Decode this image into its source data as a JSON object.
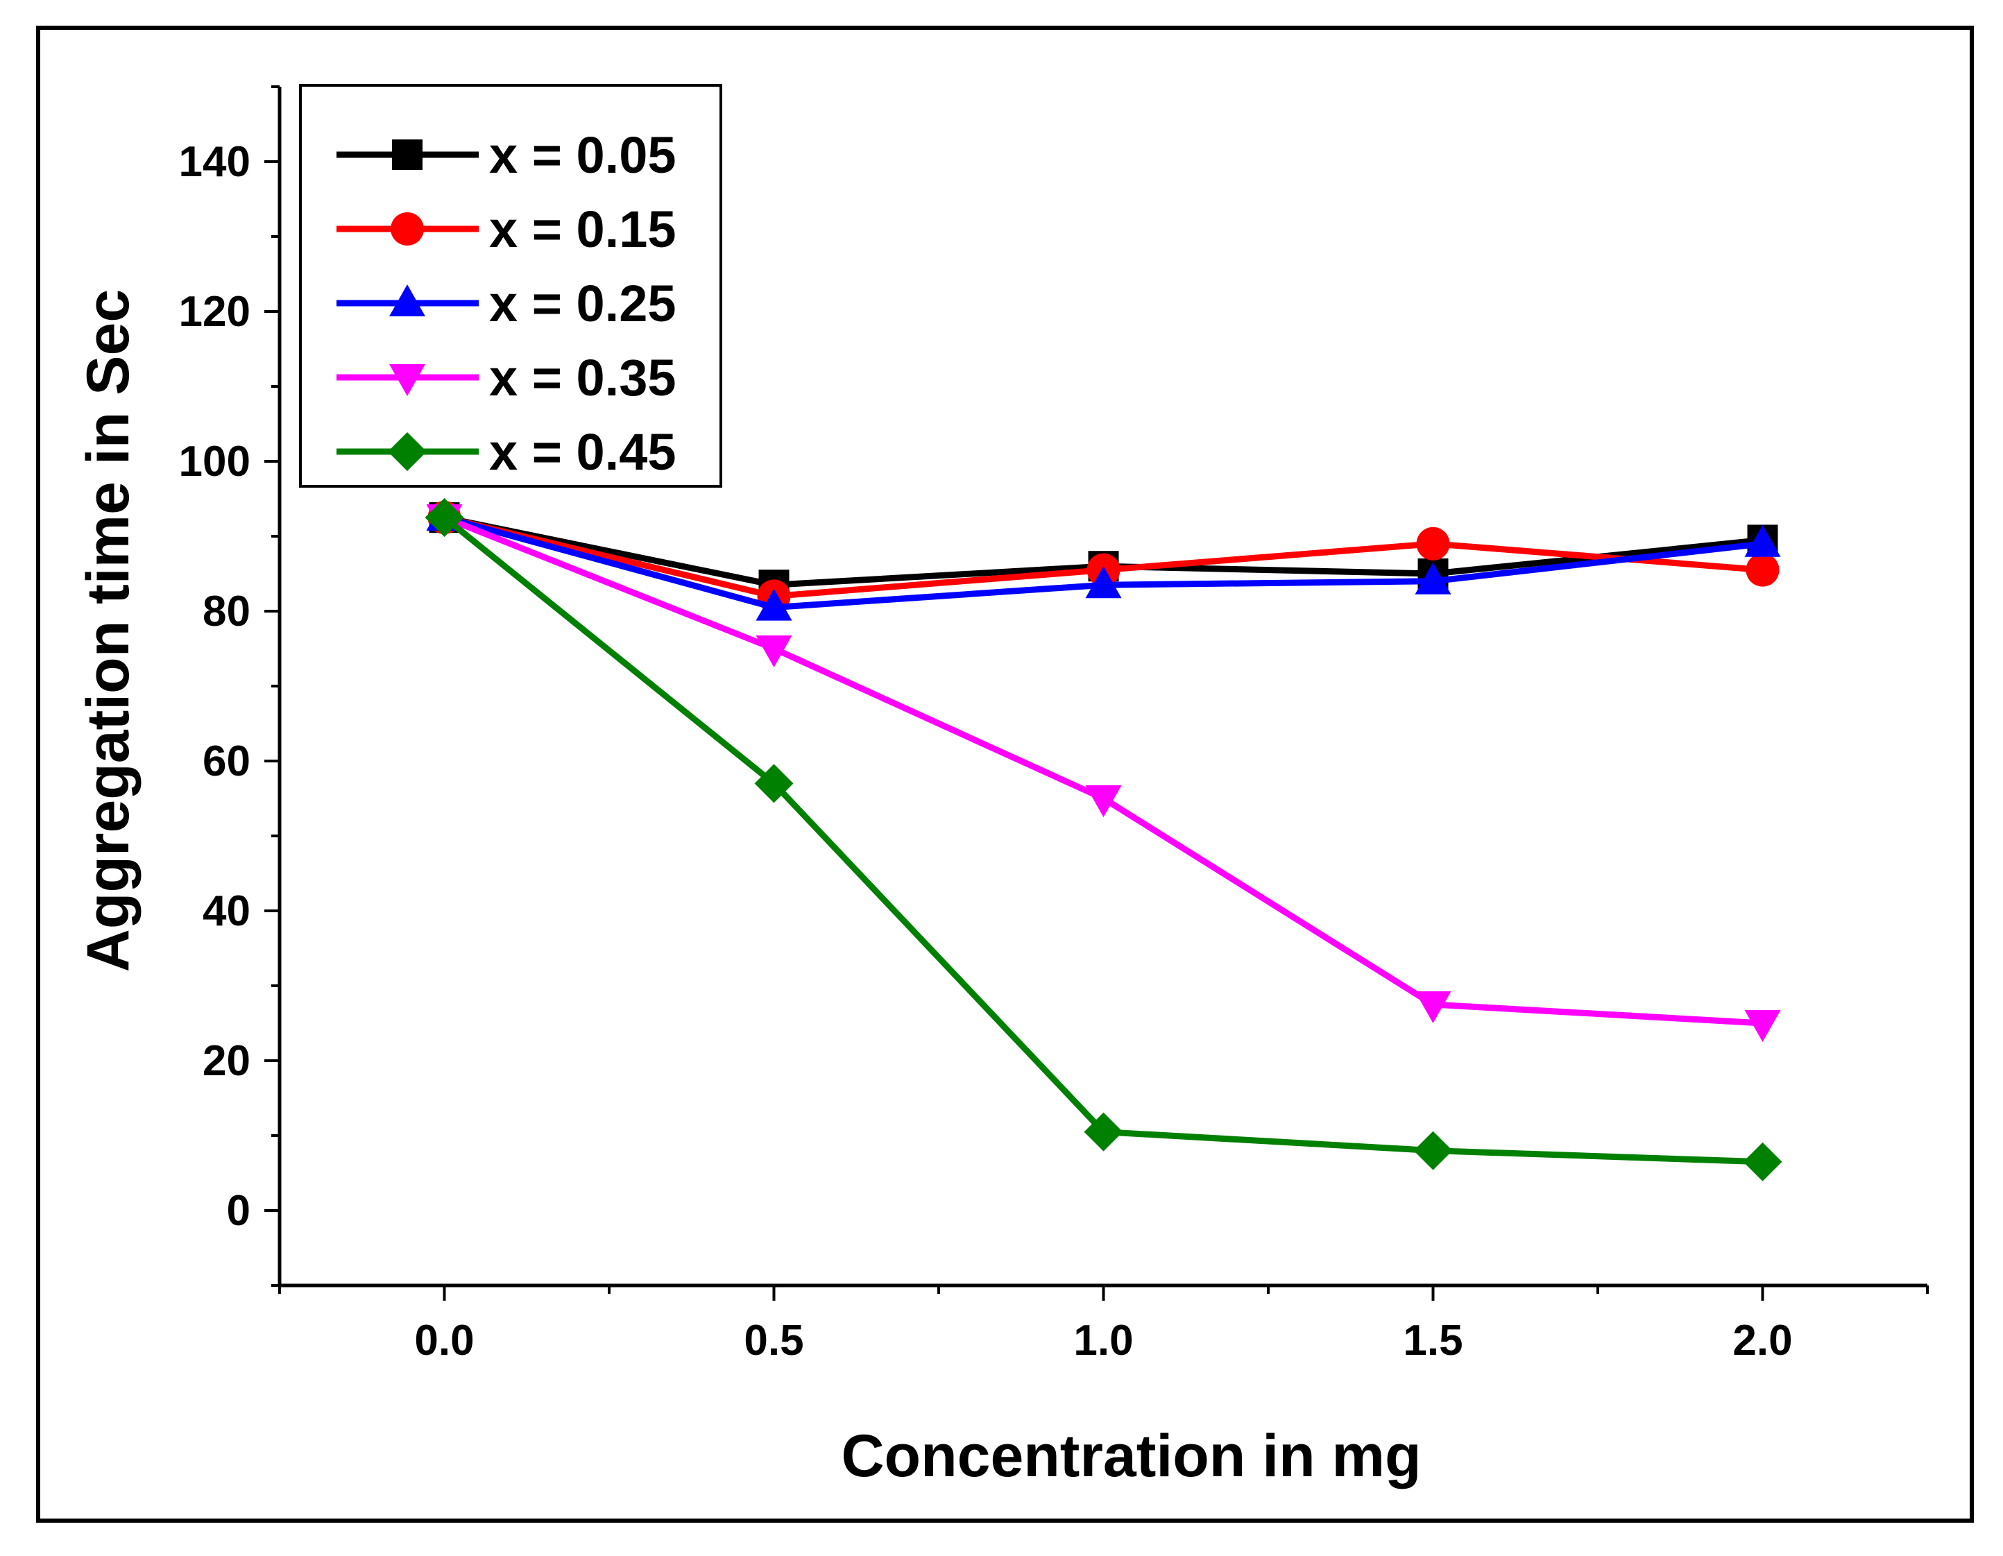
{
  "chart_data": {
    "type": "line",
    "title": "",
    "xlabel": "Concentration in mg",
    "ylabel": "Aggregation time in Sec",
    "xlim": [
      -0.25,
      2.25
    ],
    "ylim": [
      -10,
      150
    ],
    "x_ticks": [
      "0.0",
      "0.5",
      "1.0",
      "1.5",
      "2.0"
    ],
    "y_ticks": [
      "0",
      "20",
      "40",
      "60",
      "80",
      "100",
      "120",
      "140"
    ],
    "x": [
      0.0,
      0.5,
      1.0,
      1.5,
      2.0
    ],
    "legend_position": "top-left",
    "series": [
      {
        "name": "x = 0.05",
        "color": "#000000",
        "marker": "square",
        "values": [
          92.5,
          83.5,
          86.0,
          85.0,
          89.5
        ]
      },
      {
        "name": "x = 0.15",
        "color": "#ff0000",
        "marker": "circle",
        "values": [
          92.5,
          82.0,
          85.5,
          89.0,
          85.5
        ]
      },
      {
        "name": "x = 0.25",
        "color": "#0000ff",
        "marker": "triangle-up",
        "values": [
          92.5,
          80.5,
          83.5,
          84.0,
          89.0
        ]
      },
      {
        "name": "x = 0.35",
        "color": "#ff00ff",
        "marker": "triangle-down",
        "values": [
          92.5,
          75.0,
          55.0,
          27.5,
          25.0
        ]
      },
      {
        "name": "x = 0.45",
        "color": "#008000",
        "marker": "diamond",
        "values": [
          92.5,
          57.0,
          10.5,
          8.0,
          6.5
        ]
      }
    ]
  }
}
